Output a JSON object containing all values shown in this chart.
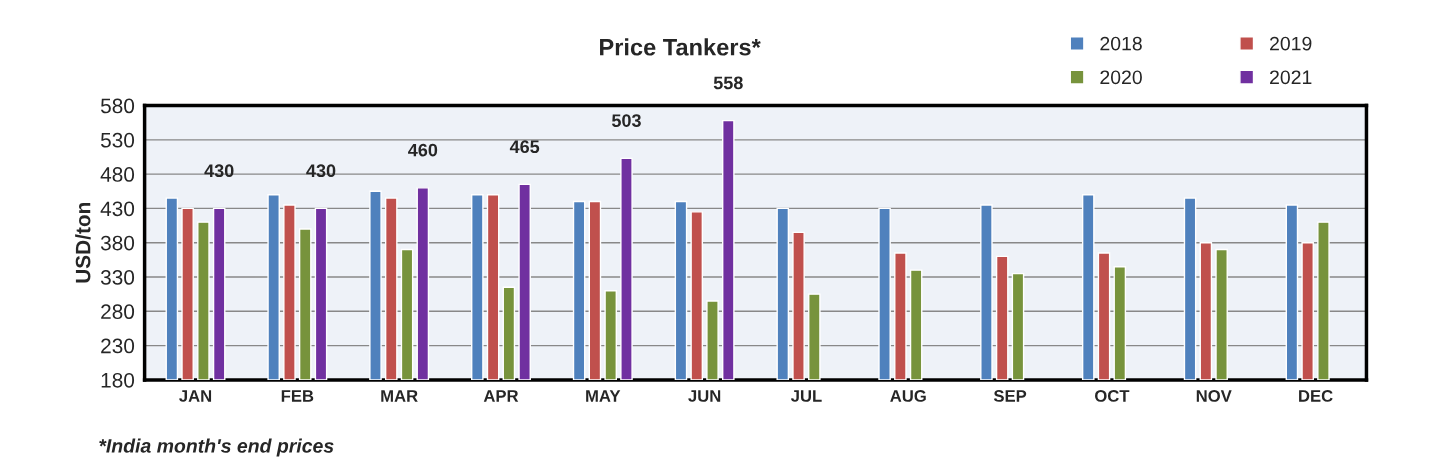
{
  "chart_data": {
    "type": "bar",
    "title": "Price Tankers*",
    "ylabel": "USD/ton",
    "categories": [
      "JAN",
      "FEB",
      "MAR",
      "APR",
      "MAY",
      "JUN",
      "JUL",
      "AUG",
      "SEP",
      "OCT",
      "NOV",
      "DEC"
    ],
    "series": [
      {
        "name": "2018",
        "color": "#4f81bd",
        "values": [
          445,
          450,
          455,
          450,
          440,
          440,
          430,
          430,
          435,
          450,
          445,
          435
        ]
      },
      {
        "name": "2019",
        "color": "#c0504d",
        "values": [
          430,
          435,
          445,
          450,
          440,
          425,
          395,
          365,
          360,
          365,
          380,
          380
        ]
      },
      {
        "name": "2020",
        "color": "#77933c",
        "values": [
          410,
          400,
          370,
          315,
          310,
          295,
          305,
          340,
          335,
          345,
          370,
          410
        ]
      },
      {
        "name": "2021",
        "color": "#7030a0",
        "values": [
          430,
          430,
          460,
          465,
          503,
          558,
          null,
          null,
          null,
          null,
          null,
          null
        ],
        "value_labels": [
          "430",
          "430",
          "460",
          "465",
          "503",
          "558",
          null,
          null,
          null,
          null,
          null,
          null
        ]
      }
    ],
    "ylim": [
      180,
      580
    ],
    "yticks": [
      180,
      230,
      280,
      330,
      380,
      430,
      480,
      530,
      580
    ],
    "grid": "y",
    "legend": "top right",
    "annotations": [
      "*India month's end prices"
    ]
  }
}
